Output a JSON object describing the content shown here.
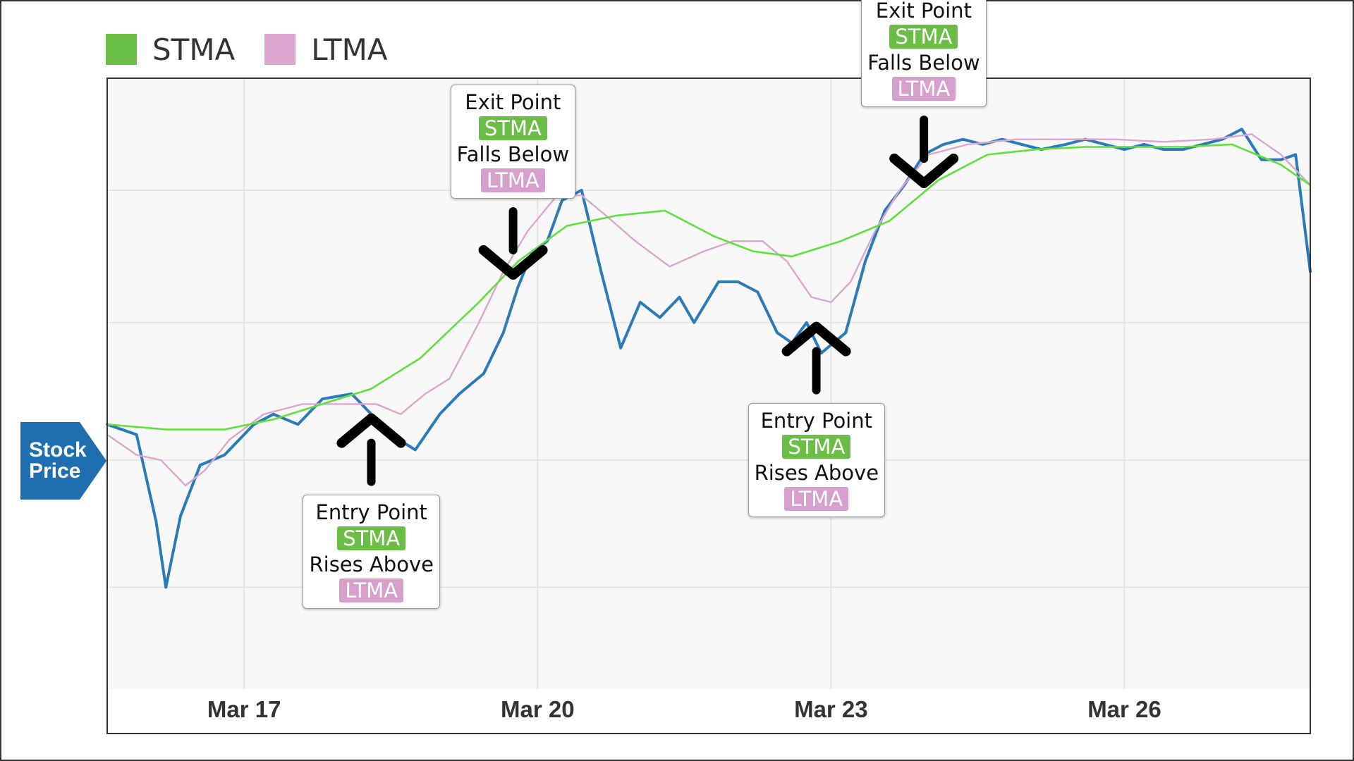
{
  "legend": [
    {
      "label": "STMA",
      "color": "#6bbe45"
    },
    {
      "label": "LTMA",
      "color": "#dca6cf"
    }
  ],
  "y_axis_tag": {
    "line1": "Stock",
    "line2": "Price",
    "color": "#1f6fb0"
  },
  "chart_data": {
    "type": "line",
    "x_ticks": [
      "Mar 17",
      "Mar 20",
      "Mar 23",
      "Mar 26"
    ],
    "grid": true,
    "legend_position": "top-left",
    "series": [
      {
        "name": "Stock Price",
        "color": "#2b7bb9",
        "points": [
          [
            15.6,
            52
          ],
          [
            15.9,
            50
          ],
          [
            16.1,
            33
          ],
          [
            16.2,
            20
          ],
          [
            16.35,
            34
          ],
          [
            16.55,
            44
          ],
          [
            16.8,
            46
          ],
          [
            17.1,
            52
          ],
          [
            17.3,
            54
          ],
          [
            17.55,
            52
          ],
          [
            17.8,
            57
          ],
          [
            18.1,
            58
          ],
          [
            18.3,
            54
          ],
          [
            18.5,
            50
          ],
          [
            18.75,
            47
          ],
          [
            19.0,
            54
          ],
          [
            19.2,
            58
          ],
          [
            19.45,
            62
          ],
          [
            19.65,
            70
          ],
          [
            19.8,
            79
          ],
          [
            19.95,
            86
          ],
          [
            20.1,
            88
          ],
          [
            20.25,
            96
          ],
          [
            20.45,
            98
          ],
          [
            20.65,
            82
          ],
          [
            20.85,
            67
          ],
          [
            21.05,
            76
          ],
          [
            21.25,
            73
          ],
          [
            21.45,
            77
          ],
          [
            21.6,
            72
          ],
          [
            21.85,
            80
          ],
          [
            22.05,
            80
          ],
          [
            22.25,
            78
          ],
          [
            22.45,
            70
          ],
          [
            22.6,
            68
          ],
          [
            22.75,
            72
          ],
          [
            22.9,
            66
          ],
          [
            23.15,
            70
          ],
          [
            23.35,
            84
          ],
          [
            23.55,
            94
          ],
          [
            23.75,
            99
          ],
          [
            23.95,
            105
          ],
          [
            24.15,
            107
          ],
          [
            24.35,
            108
          ],
          [
            24.55,
            107
          ],
          [
            24.75,
            108
          ],
          [
            24.95,
            107
          ],
          [
            25.15,
            106
          ],
          [
            25.4,
            107
          ],
          [
            25.6,
            108
          ],
          [
            25.8,
            107
          ],
          [
            26.0,
            106
          ],
          [
            26.2,
            107
          ],
          [
            26.4,
            106
          ],
          [
            26.6,
            106
          ],
          [
            26.8,
            107
          ],
          [
            27.0,
            108
          ],
          [
            27.2,
            110
          ],
          [
            27.4,
            104
          ],
          [
            27.6,
            104
          ],
          [
            27.75,
            105
          ],
          [
            27.9,
            82
          ]
        ]
      },
      {
        "name": "STMA",
        "color": "#5fe03a",
        "points": [
          [
            15.6,
            52
          ],
          [
            16.2,
            51
          ],
          [
            16.8,
            51
          ],
          [
            17.3,
            53
          ],
          [
            17.8,
            56
          ],
          [
            18.3,
            59
          ],
          [
            18.8,
            65
          ],
          [
            19.4,
            76
          ],
          [
            19.8,
            84
          ],
          [
            20.3,
            91
          ],
          [
            20.8,
            93
          ],
          [
            21.3,
            94
          ],
          [
            21.8,
            89
          ],
          [
            22.2,
            86
          ],
          [
            22.6,
            85
          ],
          [
            23.1,
            88
          ],
          [
            23.6,
            92
          ],
          [
            24.1,
            100
          ],
          [
            24.6,
            105
          ],
          [
            25.1,
            106
          ],
          [
            25.6,
            106.5
          ],
          [
            26.1,
            106.5
          ],
          [
            26.6,
            106.5
          ],
          [
            27.1,
            107
          ],
          [
            27.6,
            103
          ],
          [
            27.9,
            99
          ]
        ]
      },
      {
        "name": "LTMA",
        "color": "#dca6cf",
        "points": [
          [
            15.6,
            50
          ],
          [
            15.9,
            46
          ],
          [
            16.15,
            45
          ],
          [
            16.4,
            40
          ],
          [
            16.6,
            43
          ],
          [
            16.85,
            49
          ],
          [
            17.2,
            54
          ],
          [
            17.6,
            56
          ],
          [
            18.0,
            56
          ],
          [
            18.35,
            56
          ],
          [
            18.6,
            54
          ],
          [
            18.85,
            58
          ],
          [
            19.1,
            61
          ],
          [
            19.4,
            72
          ],
          [
            19.65,
            82
          ],
          [
            19.9,
            90
          ],
          [
            20.2,
            97
          ],
          [
            20.45,
            97
          ],
          [
            20.7,
            93
          ],
          [
            21.0,
            88
          ],
          [
            21.35,
            83
          ],
          [
            21.7,
            86
          ],
          [
            22.0,
            88
          ],
          [
            22.3,
            88
          ],
          [
            22.55,
            84
          ],
          [
            22.8,
            77
          ],
          [
            23.0,
            76
          ],
          [
            23.2,
            80
          ],
          [
            23.45,
            90
          ],
          [
            23.7,
            98
          ],
          [
            24.0,
            105
          ],
          [
            24.4,
            107
          ],
          [
            24.9,
            108
          ],
          [
            25.4,
            108
          ],
          [
            25.9,
            108
          ],
          [
            26.4,
            107.5
          ],
          [
            26.9,
            108
          ],
          [
            27.3,
            109
          ],
          [
            27.6,
            105
          ],
          [
            27.9,
            99
          ]
        ]
      }
    ],
    "annotations": [
      {
        "title": "Entry Point",
        "tag1": "STMA",
        "verb": "Rises Above",
        "tag2": "LTMA",
        "direction": "up",
        "x": 18.3,
        "value": 55
      },
      {
        "title": "Exit Point",
        "tag1": "STMA",
        "verb": "Falls Below",
        "tag2": "LTMA",
        "direction": "down",
        "x": 19.75,
        "value": 80
      },
      {
        "title": "Entry Point",
        "tag1": "STMA",
        "verb": "Rises Above",
        "tag2": "LTMA",
        "direction": "up",
        "x": 22.85,
        "value": 73
      },
      {
        "title": "Exit Point",
        "tag1": "STMA",
        "verb": "Falls Below",
        "tag2": "LTMA",
        "direction": "down",
        "x": 23.95,
        "value": 98
      }
    ]
  }
}
